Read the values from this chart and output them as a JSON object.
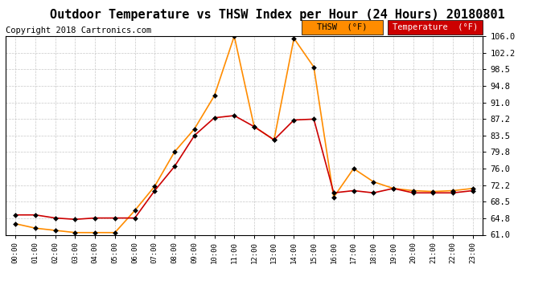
{
  "title": "Outdoor Temperature vs THSW Index per Hour (24 Hours) 20180801",
  "copyright": "Copyright 2018 Cartronics.com",
  "hours": [
    "00:00",
    "01:00",
    "02:00",
    "03:00",
    "04:00",
    "05:00",
    "06:00",
    "07:00",
    "08:00",
    "09:00",
    "10:00",
    "11:00",
    "12:00",
    "13:00",
    "14:00",
    "15:00",
    "16:00",
    "17:00",
    "18:00",
    "19:00",
    "20:00",
    "21:00",
    "22:00",
    "23:00"
  ],
  "thsw": [
    63.5,
    62.5,
    62.0,
    61.5,
    61.5,
    61.5,
    66.5,
    72.0,
    79.8,
    85.0,
    92.5,
    106.0,
    85.5,
    82.5,
    105.5,
    99.0,
    69.5,
    76.0,
    73.0,
    71.5,
    71.0,
    70.8,
    71.0,
    71.5
  ],
  "temperature": [
    65.5,
    65.5,
    64.8,
    64.5,
    64.8,
    64.8,
    64.8,
    71.0,
    76.5,
    83.5,
    87.5,
    88.0,
    85.5,
    82.5,
    87.0,
    87.2,
    70.5,
    71.0,
    70.5,
    71.5,
    70.5,
    70.5,
    70.5,
    71.0
  ],
  "thsw_color": "#FF8C00",
  "temp_color": "#CC0000",
  "ylim_min": 61.0,
  "ylim_max": 106.0,
  "ytick_labels": [
    "61.0",
    "64.8",
    "68.5",
    "72.2",
    "76.0",
    "79.8",
    "83.5",
    "87.2",
    "91.0",
    "94.8",
    "98.5",
    "102.2",
    "106.0"
  ],
  "ytick_values": [
    61.0,
    64.8,
    68.5,
    72.2,
    76.0,
    79.8,
    83.5,
    87.2,
    91.0,
    94.8,
    98.5,
    102.2,
    106.0
  ],
  "legend_thsw_label": "THSW  (°F)",
  "legend_temp_label": "Temperature  (°F)",
  "legend_thsw_bg": "#FF8C00",
  "legend_temp_bg": "#CC0000",
  "background_color": "#ffffff",
  "grid_color": "#c8c8c8",
  "title_fontsize": 11,
  "copyright_fontsize": 7.5
}
